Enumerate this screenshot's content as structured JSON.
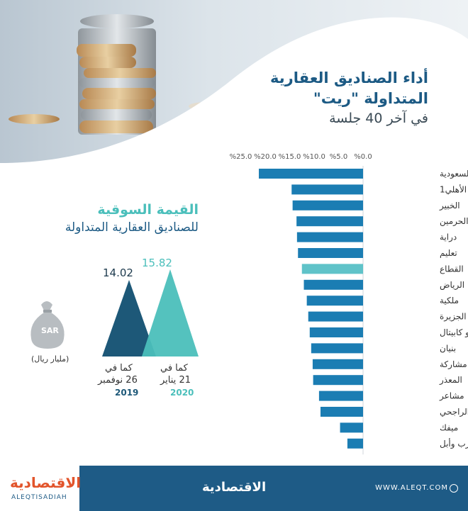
{
  "title": {
    "line1": "أداء الصناديق العقارية",
    "line2": "المتداولة \"ريت\"",
    "line3": "في آخر 40 جلسة"
  },
  "market_value": {
    "title": "القيمة السوقية",
    "subtitle": "للصناديق العقارية المتداولة",
    "unit": "(مليار ريال)",
    "bag_label": "SAR",
    "items": [
      {
        "value": "14.02",
        "date_line1": "كما في",
        "date_line2": "26 نوفمبر",
        "year": "2019",
        "color": "#1d5878"
      },
      {
        "value": "15.82",
        "date_line1": "كما في",
        "date_line2": "21 يناير",
        "year": "2020",
        "color": "#4bbfbb"
      }
    ]
  },
  "footer": {
    "logo": "الاقتصادية",
    "logo_latin": "ALEQTISADIAH",
    "center_logo": "الاقتصادية",
    "website": "WWW.ALEQT.COM"
  },
  "colors": {
    "bar": "#1b7db3",
    "bar_highlight": "#5fc3c9",
    "footer": "#1e5b86",
    "title": "#1c5a84"
  },
  "chart_data": {
    "type": "bar",
    "orientation": "horizontal",
    "unit": "%",
    "categories": [
      "جدوى السعودية",
      "الأهلي1",
      "الخبير",
      "جدوى الحرمين",
      "دراية",
      "تعليم",
      "القطاع",
      "الرياض",
      "ملكية",
      "الجزيرة",
      "سدكو كابيتال",
      "بنيان",
      "مشاركة",
      "المعذر",
      "مشاعر",
      "الراجحي",
      "ميفك",
      "سويكورب وأبل"
    ],
    "values": [
      21.3,
      14.6,
      14.4,
      13.6,
      13.5,
      13.3,
      12.5,
      12.1,
      11.5,
      11.2,
      10.9,
      10.6,
      10.3,
      10.2,
      9.0,
      8.7,
      4.7,
      3.2
    ],
    "highlight": "القطاع",
    "xlim": [
      0,
      25
    ],
    "ticks": [
      "%0.0",
      "%5.0",
      "%10.0",
      "%15.0",
      "%20.0",
      "%25.0"
    ],
    "tick_values": [
      0,
      5,
      10,
      15,
      20,
      25
    ],
    "grid": false
  }
}
